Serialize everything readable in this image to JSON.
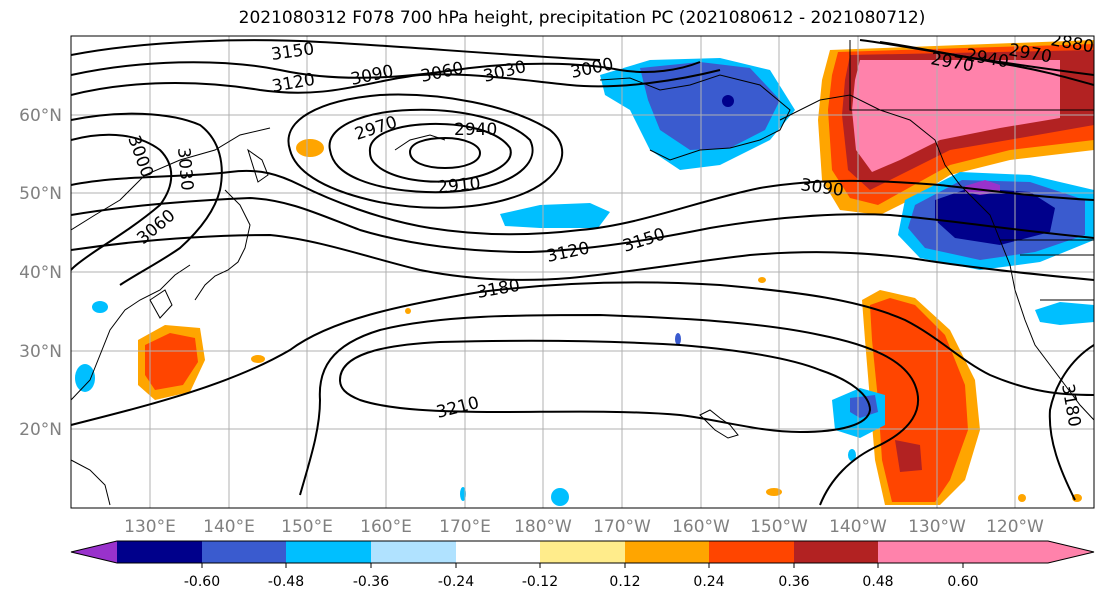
{
  "title": "2021080312 F078 700 hPa height, precipitation PC (2021080612 - 2021080712)",
  "lat_labels": [
    "20°N",
    "30°N",
    "40°N",
    "50°N",
    "60°N"
  ],
  "lon_labels": [
    "130°E",
    "140°E",
    "150°E",
    "160°E",
    "170°E",
    "180°W",
    "170°W",
    "160°W",
    "150°W",
    "140°W",
    "130°W",
    "120°W"
  ],
  "contour_labels": [
    "3150",
    "3120",
    "3090",
    "3060",
    "3030",
    "3000",
    "2970",
    "2940",
    "2910",
    "3000",
    "3030",
    "3060",
    "3120",
    "3150",
    "3180",
    "3210",
    "3090",
    "3180",
    "2970",
    "2940",
    "2970",
    "2880"
  ],
  "colorbar": {
    "ticks": [
      "-0.60",
      "-0.48",
      "-0.36",
      "-0.24",
      "-0.12",
      "0.12",
      "0.24",
      "0.36",
      "0.48",
      "0.60"
    ],
    "colors": [
      "#9932cc",
      "#00008b",
      "#3a5bcf",
      "#00bfff",
      "#b0e2ff",
      "#ffffff",
      "#ffec8b",
      "#ffa500",
      "#ff4500",
      "#b22222",
      "#ff82ab"
    ]
  }
}
